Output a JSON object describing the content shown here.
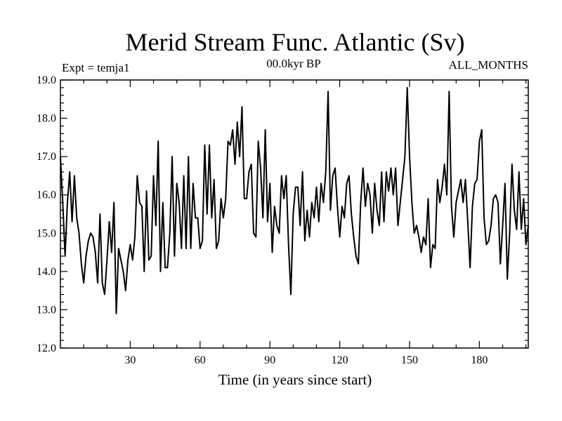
{
  "chart_data": {
    "type": "line",
    "title": "Merid Stream Func. Atlantic (Sv)",
    "subtitle_left": "Expt = temja1",
    "subtitle_center": "00.0kyr BP",
    "subtitle_right": "ALL_MONTHS",
    "xlabel": "Time (in years since start)",
    "ylabel": "",
    "xlim": [
      0,
      201
    ],
    "ylim": [
      12.0,
      19.0
    ],
    "xticks": [
      30,
      60,
      90,
      120,
      150,
      180
    ],
    "xtick_labels": [
      "30",
      "60",
      "90",
      "120",
      "150",
      "180"
    ],
    "yticks": [
      12.0,
      13.0,
      14.0,
      15.0,
      16.0,
      17.0,
      18.0,
      19.0
    ],
    "ytick_labels": [
      "12.0",
      "13.0",
      "14.0",
      "15.0",
      "16.0",
      "17.0",
      "18.0",
      "19.0"
    ],
    "grid": false,
    "series": [
      {
        "name": "Merid Stream Func. Atlantic",
        "color": "#000000",
        "x_start": 0,
        "x_step": 1,
        "values": [
          17.0,
          15.8,
          14.4,
          15.8,
          16.6,
          15.3,
          16.5,
          15.4,
          15.0,
          14.2,
          13.7,
          14.4,
          14.8,
          15.0,
          14.9,
          14.5,
          13.7,
          15.5,
          13.7,
          13.4,
          14.3,
          15.3,
          14.5,
          15.8,
          12.9,
          14.6,
          14.3,
          14.0,
          13.5,
          14.3,
          14.7,
          14.3,
          14.9,
          16.5,
          15.8,
          15.7,
          14.0,
          16.1,
          14.3,
          14.4,
          16.5,
          15.2,
          17.4,
          14.0,
          15.8,
          14.1,
          14.1,
          15.0,
          17.0,
          14.4,
          16.3,
          15.8,
          14.6,
          16.5,
          14.6,
          17.0,
          14.6,
          16.3,
          15.4,
          15.4,
          14.6,
          14.8,
          17.3,
          15.5,
          17.3,
          15.4,
          16.4,
          14.6,
          14.8,
          15.9,
          15.4,
          15.9,
          17.4,
          17.3,
          17.7,
          16.8,
          17.9,
          17.0,
          18.3,
          15.9,
          15.9,
          16.6,
          16.8,
          15.0,
          14.9,
          17.4,
          16.7,
          15.4,
          17.7,
          15.3,
          16.3,
          14.5,
          15.7,
          15.2,
          15.0,
          16.5,
          15.9,
          16.5,
          14.7,
          13.4,
          15.5,
          16.2,
          16.2,
          15.2,
          16.6,
          14.8,
          15.6,
          14.9,
          15.8,
          15.4,
          16.2,
          15.3,
          16.3,
          15.8,
          16.6,
          18.7,
          15.6,
          16.5,
          16.7,
          15.7,
          14.9,
          15.7,
          15.4,
          16.3,
          16.5,
          15.5,
          14.9,
          14.4,
          14.2,
          15.8,
          16.7,
          15.7,
          16.3,
          16.0,
          15.0,
          16.3,
          15.6,
          15.2,
          16.6,
          15.3,
          16.6,
          16.1,
          16.7,
          16.0,
          16.7,
          15.2,
          15.8,
          16.4,
          17.0,
          18.8,
          17.0,
          15.8,
          15.0,
          15.2,
          14.9,
          14.5,
          14.9,
          14.7,
          15.9,
          14.1,
          14.7,
          14.6,
          16.4,
          15.8,
          16.2,
          16.8,
          16.0,
          18.7,
          15.7,
          14.9,
          15.8,
          16.1,
          16.4,
          15.8,
          16.4,
          15.3,
          14.1,
          15.7,
          16.3,
          16.4,
          17.4,
          17.7,
          15.4,
          14.7,
          14.8,
          15.2,
          15.9,
          16.0,
          15.8,
          14.2,
          15.2,
          16.3,
          13.8,
          15.0,
          16.8,
          15.6,
          15.1,
          16.6,
          15.1,
          15.9,
          14.7,
          15.2
        ]
      }
    ]
  }
}
